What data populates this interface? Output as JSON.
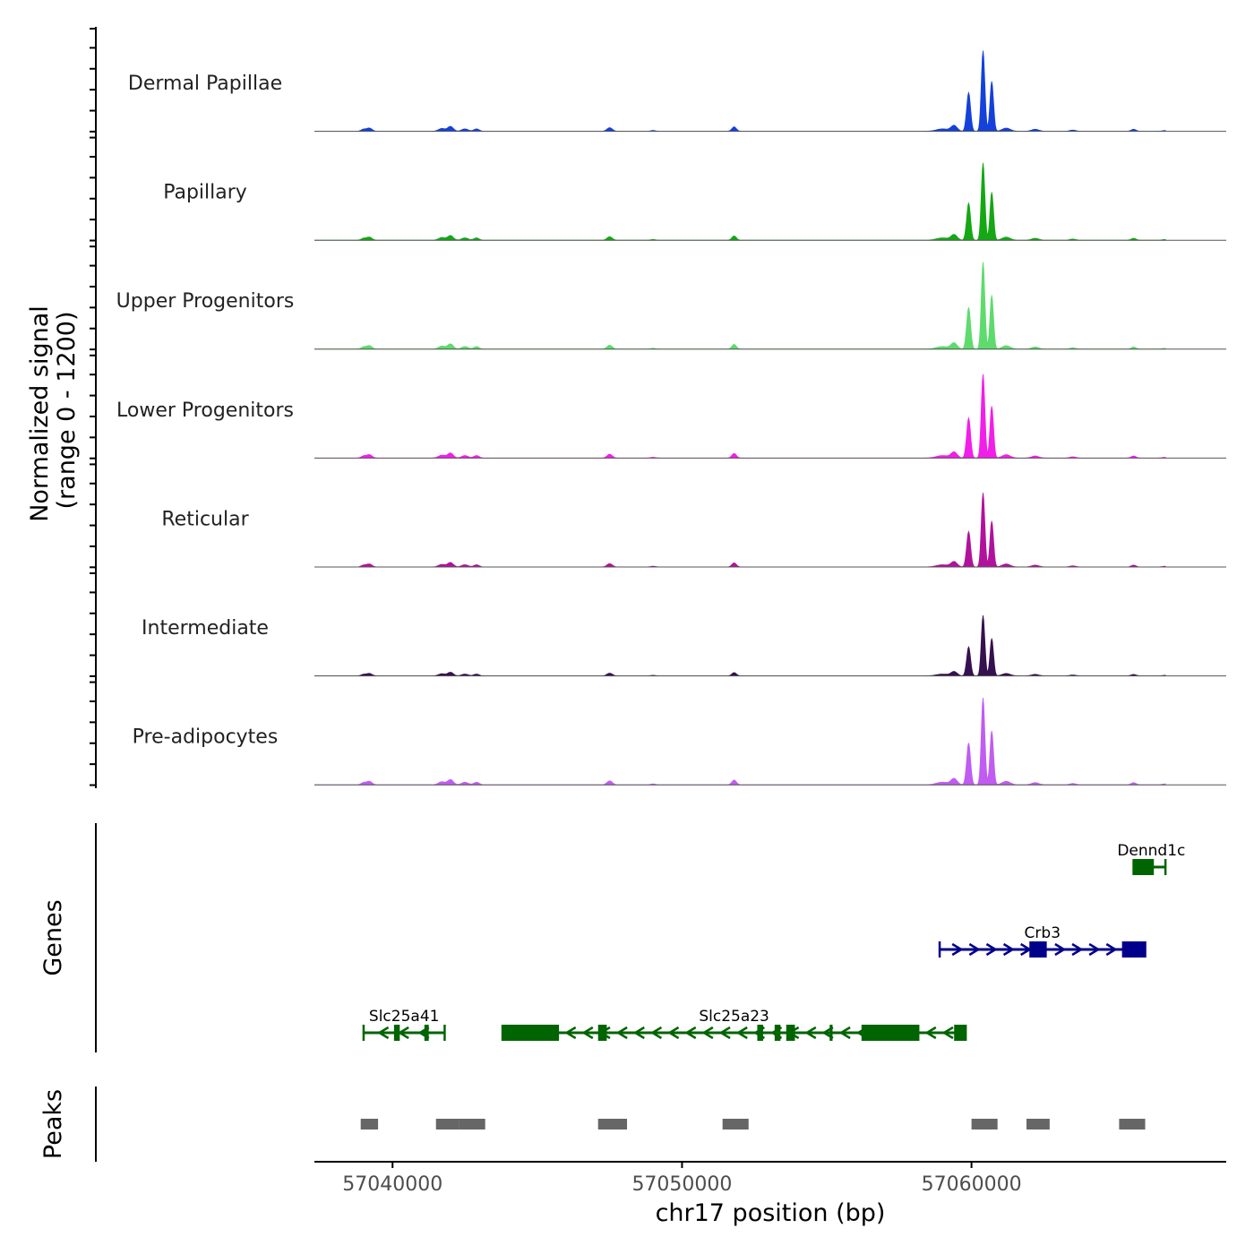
{
  "chart_data": {
    "type": "area",
    "title": "",
    "xlabel": "chr17 position (bp)",
    "ylabel_line1": "Normalized signal",
    "ylabel_line2": "(range 0 - 1200)",
    "ylim": [
      0,
      1200
    ],
    "xlim": [
      57037300,
      57068800
    ],
    "x_ticks": [
      {
        "value": 57040000,
        "label": "57040000"
      },
      {
        "value": 57050000,
        "label": "57050000"
      },
      {
        "value": 57060000,
        "label": "57060000"
      }
    ],
    "series": [
      {
        "name": "Dermal Papillae",
        "color": "#1441DB",
        "scale": 1.0
      },
      {
        "name": "Papillary",
        "color": "#14A814",
        "scale": 0.96
      },
      {
        "name": "Upper Progenitors",
        "color": "#5FDB6E",
        "scale": 1.08
      },
      {
        "name": "Lower Progenitors",
        "color": "#F21FE8",
        "scale": 1.04
      },
      {
        "name": "Reticular",
        "color": "#B0129C",
        "scale": 0.92
      },
      {
        "name": "Intermediate",
        "color": "#36114F",
        "scale": 0.75
      },
      {
        "name": "Pre-adipocytes",
        "color": "#C05CF2",
        "scale": 1.08
      }
    ],
    "signal_peaks": [
      {
        "pos": 57039000,
        "h": 25,
        "w": 120
      },
      {
        "pos": 57039200,
        "h": 40,
        "w": 130
      },
      {
        "pos": 57041700,
        "h": 35,
        "w": 160
      },
      {
        "pos": 57042000,
        "h": 60,
        "w": 140
      },
      {
        "pos": 57042500,
        "h": 30,
        "w": 160
      },
      {
        "pos": 57042900,
        "h": 30,
        "w": 130
      },
      {
        "pos": 57047500,
        "h": 45,
        "w": 130
      },
      {
        "pos": 57049000,
        "h": 10,
        "w": 120
      },
      {
        "pos": 57051800,
        "h": 55,
        "w": 110
      },
      {
        "pos": 57059000,
        "h": 30,
        "w": 300
      },
      {
        "pos": 57059400,
        "h": 70,
        "w": 150
      },
      {
        "pos": 57059900,
        "h": 480,
        "w": 95
      },
      {
        "pos": 57060400,
        "h": 1000,
        "w": 85
      },
      {
        "pos": 57060700,
        "h": 620,
        "w": 85
      },
      {
        "pos": 57061200,
        "h": 40,
        "w": 200
      },
      {
        "pos": 57062200,
        "h": 25,
        "w": 180
      },
      {
        "pos": 57063500,
        "h": 15,
        "w": 150
      },
      {
        "pos": 57065600,
        "h": 25,
        "w": 120
      },
      {
        "pos": 57066700,
        "h": 10,
        "w": 150
      }
    ],
    "genes": [
      {
        "name": "Dennd1c",
        "strand": "-",
        "start": 57065600,
        "end": 57066700,
        "row": 1,
        "exons": [
          [
            57065600,
            57066300
          ]
        ]
      },
      {
        "name": "Crb3",
        "strand": "+",
        "start": 57058900,
        "end": 57066000,
        "row": 2,
        "exons": [
          [
            57062000,
            57062600
          ],
          [
            57065200,
            57066000
          ]
        ]
      },
      {
        "name": "Slc25a41",
        "strand": "-",
        "start": 57039000,
        "end": 57041800,
        "row": 3,
        "exons": [
          [
            57040050,
            57040250
          ],
          [
            57041100,
            57041250
          ]
        ]
      },
      {
        "name": "Slc25a23",
        "strand": "-",
        "start": 57043800,
        "end": 57059800,
        "row": 3,
        "exons": [
          [
            57043800,
            57045750
          ],
          [
            57047100,
            57047400
          ],
          [
            57052600,
            57052800
          ],
          [
            57053200,
            57053400
          ],
          [
            57053600,
            57053900
          ],
          [
            57055100,
            57055200
          ],
          [
            57056200,
            57058200
          ],
          [
            57059400,
            57059800
          ]
        ]
      }
    ],
    "gene_color_minus": "#006400",
    "gene_color_plus": "#00008B",
    "panel_titles": {
      "genes": "Genes",
      "peaks": "Peaks"
    },
    "peaks": [
      [
        57038900,
        57039500
      ],
      [
        57041500,
        57042300
      ],
      [
        57042300,
        57043200
      ],
      [
        57047100,
        57048100
      ],
      [
        57051400,
        57052300
      ],
      [
        57060000,
        57060900
      ],
      [
        57061900,
        57062700
      ],
      [
        57065100,
        57066000
      ]
    ],
    "peak_color": "#666666"
  }
}
